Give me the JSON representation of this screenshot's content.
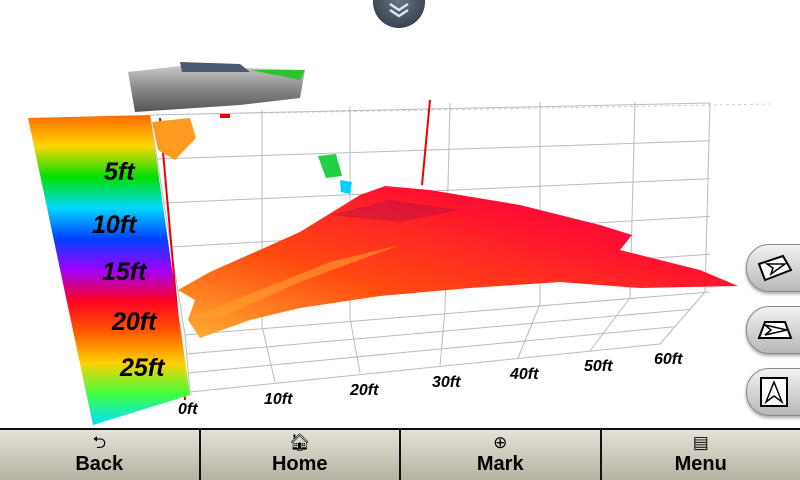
{
  "depth_scale": {
    "labels": [
      "5ft",
      "10ft",
      "15ft",
      "20ft",
      "25ft"
    ],
    "colors": [
      "#ff6a00",
      "#ffd400",
      "#00e000",
      "#00d8ff",
      "#0040ff",
      "#a000ff",
      "#ff0020",
      "#ff5a00",
      "#ffd000",
      "#40ff40",
      "#00e0ff"
    ]
  },
  "distance_axis": {
    "labels": [
      "0ft",
      "10ft",
      "20ft",
      "30ft",
      "40ft",
      "50ft",
      "60ft"
    ]
  },
  "side_buttons": [
    {
      "name": "view-angle-high",
      "icon": "perspective-arrow-icon"
    },
    {
      "name": "view-angle-low",
      "icon": "flat-perspective-arrow-icon"
    },
    {
      "name": "view-top-down",
      "icon": "north-up-arrow-icon"
    }
  ],
  "bottom_bar": {
    "buttons": [
      {
        "label": "Back",
        "icon": "back-arrow-icon",
        "glyph": "⮌"
      },
      {
        "label": "Home",
        "icon": "home-icon",
        "glyph": "🏠︎"
      },
      {
        "label": "Mark",
        "icon": "crosshair-circle-icon",
        "glyph": "⊕"
      },
      {
        "label": "Menu",
        "icon": "menu-list-icon",
        "glyph": "▤"
      }
    ]
  },
  "colors": {
    "bottom_bar": "#cfccc0",
    "surface_primary": "#ff2020",
    "surface_secondary": "#ff9a20"
  }
}
